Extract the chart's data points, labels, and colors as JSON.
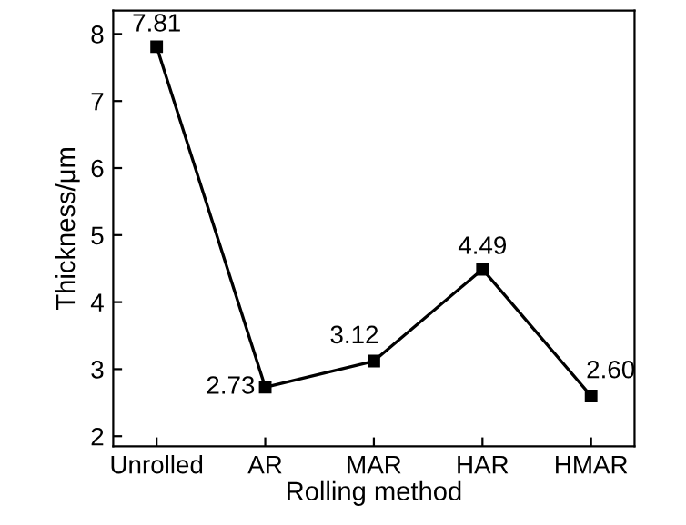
{
  "chart_data": {
    "type": "line",
    "xlabel": "Rolling method",
    "ylabel": "Thickness/μm",
    "categories": [
      "Unrolled",
      "AR",
      "MAR",
      "HAR",
      "HMAR"
    ],
    "series": [
      {
        "color": "#000000",
        "values": [
          7.81,
          2.73,
          3.12,
          4.49,
          2.6
        ],
        "value_labels": [
          "7.81",
          "2.73",
          "3.12",
          "4.49",
          "2.60"
        ]
      }
    ],
    "ylim": [
      1.85,
      8.35
    ],
    "yticks": [
      2,
      3,
      4,
      5,
      6,
      7,
      8
    ],
    "marker": "square",
    "line_style": "solid"
  }
}
